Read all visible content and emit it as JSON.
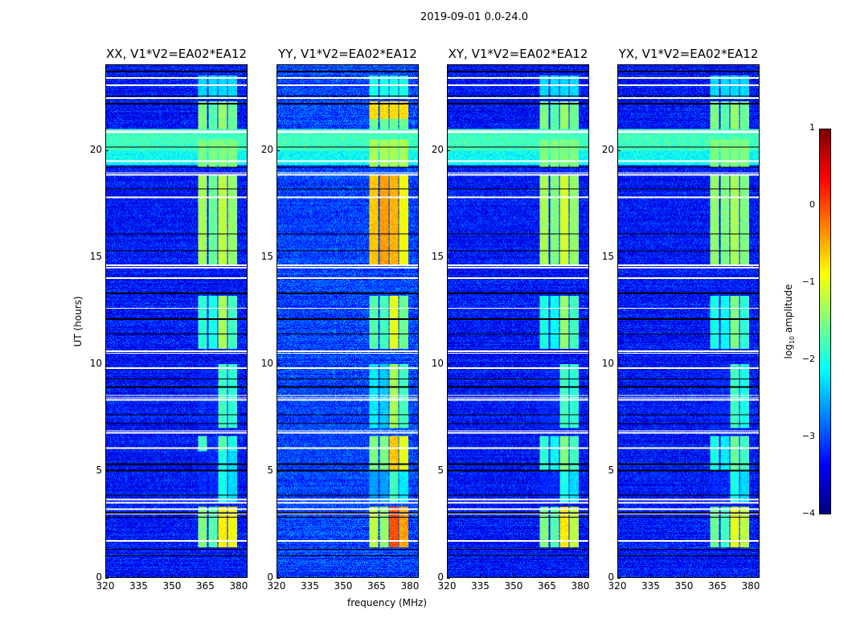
{
  "chart_data": {
    "type": "heatmap",
    "title": "2019-09-01 0.0-24.0",
    "xlabel": "frequency (MHz)",
    "ylabel": "UT (hours)",
    "xlim": [
      320,
      384
    ],
    "ylim": [
      0,
      24
    ],
    "xticks": [
      "320",
      "335",
      "350",
      "365",
      "380"
    ],
    "xtick_values": [
      320,
      335,
      350,
      365,
      380
    ],
    "yticks": [
      "0",
      "5",
      "10",
      "15",
      "20"
    ],
    "ytick_values": [
      0,
      5,
      10,
      15,
      20
    ],
    "colorbar": {
      "label_prefix": "log",
      "label_sub": "10",
      "label_suffix": " amplitude",
      "range": [
        -4,
        1
      ],
      "ticks": [
        "1",
        "0",
        "−1",
        "−2",
        "−3",
        "−4"
      ],
      "tick_values": [
        1,
        0,
        -1,
        -2,
        -3,
        -4
      ],
      "colormap": "jet"
    },
    "background_level": -3.3,
    "channel_blocks_mhz": [
      [
        362,
        366
      ],
      [
        366.5,
        370.5
      ],
      [
        371,
        375
      ],
      [
        375.5,
        379.5
      ]
    ],
    "flagged_rows_white_ut": [
      23.4,
      23.05,
      22.45,
      20.9,
      20.85,
      19.5,
      18.95,
      18.85,
      17.8,
      14.6,
      14.5,
      14.0,
      12.6,
      10.6,
      10.5,
      9.8,
      8.5,
      8.4,
      8.3,
      6.85,
      6.75,
      6.05,
      3.65,
      3.5,
      3.2,
      2.95,
      1.7
    ],
    "flagged_rows_black_ut": [
      23.7,
      22.55,
      22.2,
      20.15,
      19.2,
      18.2,
      16.1,
      15.3,
      13.3,
      12.1,
      11.4,
      9.3,
      8.9,
      7.6,
      7.2,
      5.3,
      5.0,
      3.85,
      3.0,
      2.8,
      1.3,
      1.0
    ],
    "broadband_rfi_ut": [
      [
        19.3,
        21.0,
        -1.8
      ]
    ],
    "panels": [
      {
        "title": "XX, V1*V2=EA02*EA12",
        "segments": [
          [
            1.4,
            3.3,
            [
              -1.5,
              -1.7,
              -0.8,
              -0.9
            ]
          ],
          [
            3.5,
            5.9,
            [
              -3.3,
              -3.3,
              -2.0,
              -2.3
            ]
          ],
          [
            5.9,
            6.6,
            [
              -1.8,
              -3.2,
              -1.7,
              -2.0
            ]
          ],
          [
            7.0,
            10.0,
            [
              -3.3,
              -3.3,
              -1.8,
              -1.9
            ]
          ],
          [
            10.7,
            13.2,
            [
              -1.9,
              -2.0,
              -1.3,
              -1.8
            ]
          ],
          [
            14.6,
            18.8,
            [
              -1.3,
              -1.6,
              -1.2,
              -1.4
            ]
          ],
          [
            19.2,
            20.5,
            [
              -1.5,
              -1.5,
              -1.5,
              -1.5
            ]
          ],
          [
            21.0,
            22.3,
            [
              -1.5,
              -1.7,
              -1.4,
              -1.6
            ]
          ],
          [
            22.5,
            23.5,
            [
              -2.3,
              -2.3,
              -2.3,
              -2.3
            ]
          ]
        ]
      },
      {
        "title": "YY, V1*V2=EA02*EA12",
        "segments": [
          [
            1.4,
            3.3,
            [
              -1.2,
              -1.4,
              0.0,
              -0.4
            ]
          ],
          [
            3.5,
            5.0,
            [
              -2.6,
              -2.6,
              -1.8,
              -2.2
            ]
          ],
          [
            5.0,
            6.6,
            [
              -1.5,
              -1.5,
              -0.6,
              -1.0
            ]
          ],
          [
            7.0,
            10.0,
            [
              -2.2,
              -2.4,
              -1.3,
              -1.8
            ]
          ],
          [
            10.7,
            13.2,
            [
              -1.7,
              -1.8,
              -1.0,
              -1.6
            ]
          ],
          [
            14.6,
            18.8,
            [
              -0.6,
              -0.4,
              -0.5,
              -0.9
            ]
          ],
          [
            19.2,
            20.5,
            [
              -1.3,
              -1.3,
              -1.3,
              -1.3
            ]
          ],
          [
            21.0,
            21.5,
            [
              -1.6,
              -1.6,
              -1.6,
              -1.6
            ]
          ],
          [
            21.5,
            22.3,
            [
              -0.7,
              -0.7,
              -0.7,
              -0.7
            ]
          ],
          [
            22.5,
            23.5,
            [
              -2.0,
              -2.0,
              -2.0,
              -2.0
            ]
          ]
        ]
      },
      {
        "title": "XY, V1*V2=EA02*EA12",
        "segments": [
          [
            1.4,
            3.3,
            [
              -1.5,
              -1.7,
              -0.8,
              -1.2
            ]
          ],
          [
            3.5,
            5.0,
            [
              -3.3,
              -3.3,
              -2.0,
              -2.3
            ]
          ],
          [
            5.0,
            6.6,
            [
              -1.9,
              -2.1,
              -1.5,
              -1.8
            ]
          ],
          [
            7.0,
            10.0,
            [
              -3.3,
              -3.3,
              -1.8,
              -1.9
            ]
          ],
          [
            10.7,
            13.2,
            [
              -2.0,
              -2.1,
              -1.4,
              -1.8
            ]
          ],
          [
            14.6,
            18.8,
            [
              -1.3,
              -1.5,
              -1.1,
              -1.4
            ]
          ],
          [
            19.2,
            20.5,
            [
              -1.5,
              -1.5,
              -1.5,
              -1.5
            ]
          ],
          [
            21.0,
            22.3,
            [
              -1.5,
              -1.7,
              -1.4,
              -1.6
            ]
          ],
          [
            22.5,
            23.5,
            [
              -2.3,
              -2.3,
              -2.3,
              -2.3
            ]
          ]
        ]
      },
      {
        "title": "YX, V1*V2=EA02*EA12",
        "segments": [
          [
            1.4,
            3.3,
            [
              -1.6,
              -1.8,
              -1.0,
              -1.2
            ]
          ],
          [
            3.5,
            5.0,
            [
              -3.3,
              -3.3,
              -2.0,
              -2.3
            ]
          ],
          [
            5.0,
            6.6,
            [
              -2.0,
              -2.2,
              -1.6,
              -1.8
            ]
          ],
          [
            7.0,
            10.0,
            [
              -3.3,
              -3.3,
              -1.8,
              -2.0
            ]
          ],
          [
            10.7,
            13.2,
            [
              -2.0,
              -2.1,
              -1.5,
              -1.9
            ]
          ],
          [
            14.6,
            18.8,
            [
              -1.4,
              -1.5,
              -1.3,
              -1.5
            ]
          ],
          [
            19.2,
            20.5,
            [
              -1.5,
              -1.5,
              -1.5,
              -1.5
            ]
          ],
          [
            21.0,
            22.3,
            [
              -1.5,
              -1.7,
              -1.4,
              -1.6
            ]
          ],
          [
            22.5,
            23.5,
            [
              -2.3,
              -2.3,
              -2.3,
              -2.3
            ]
          ]
        ]
      }
    ]
  }
}
